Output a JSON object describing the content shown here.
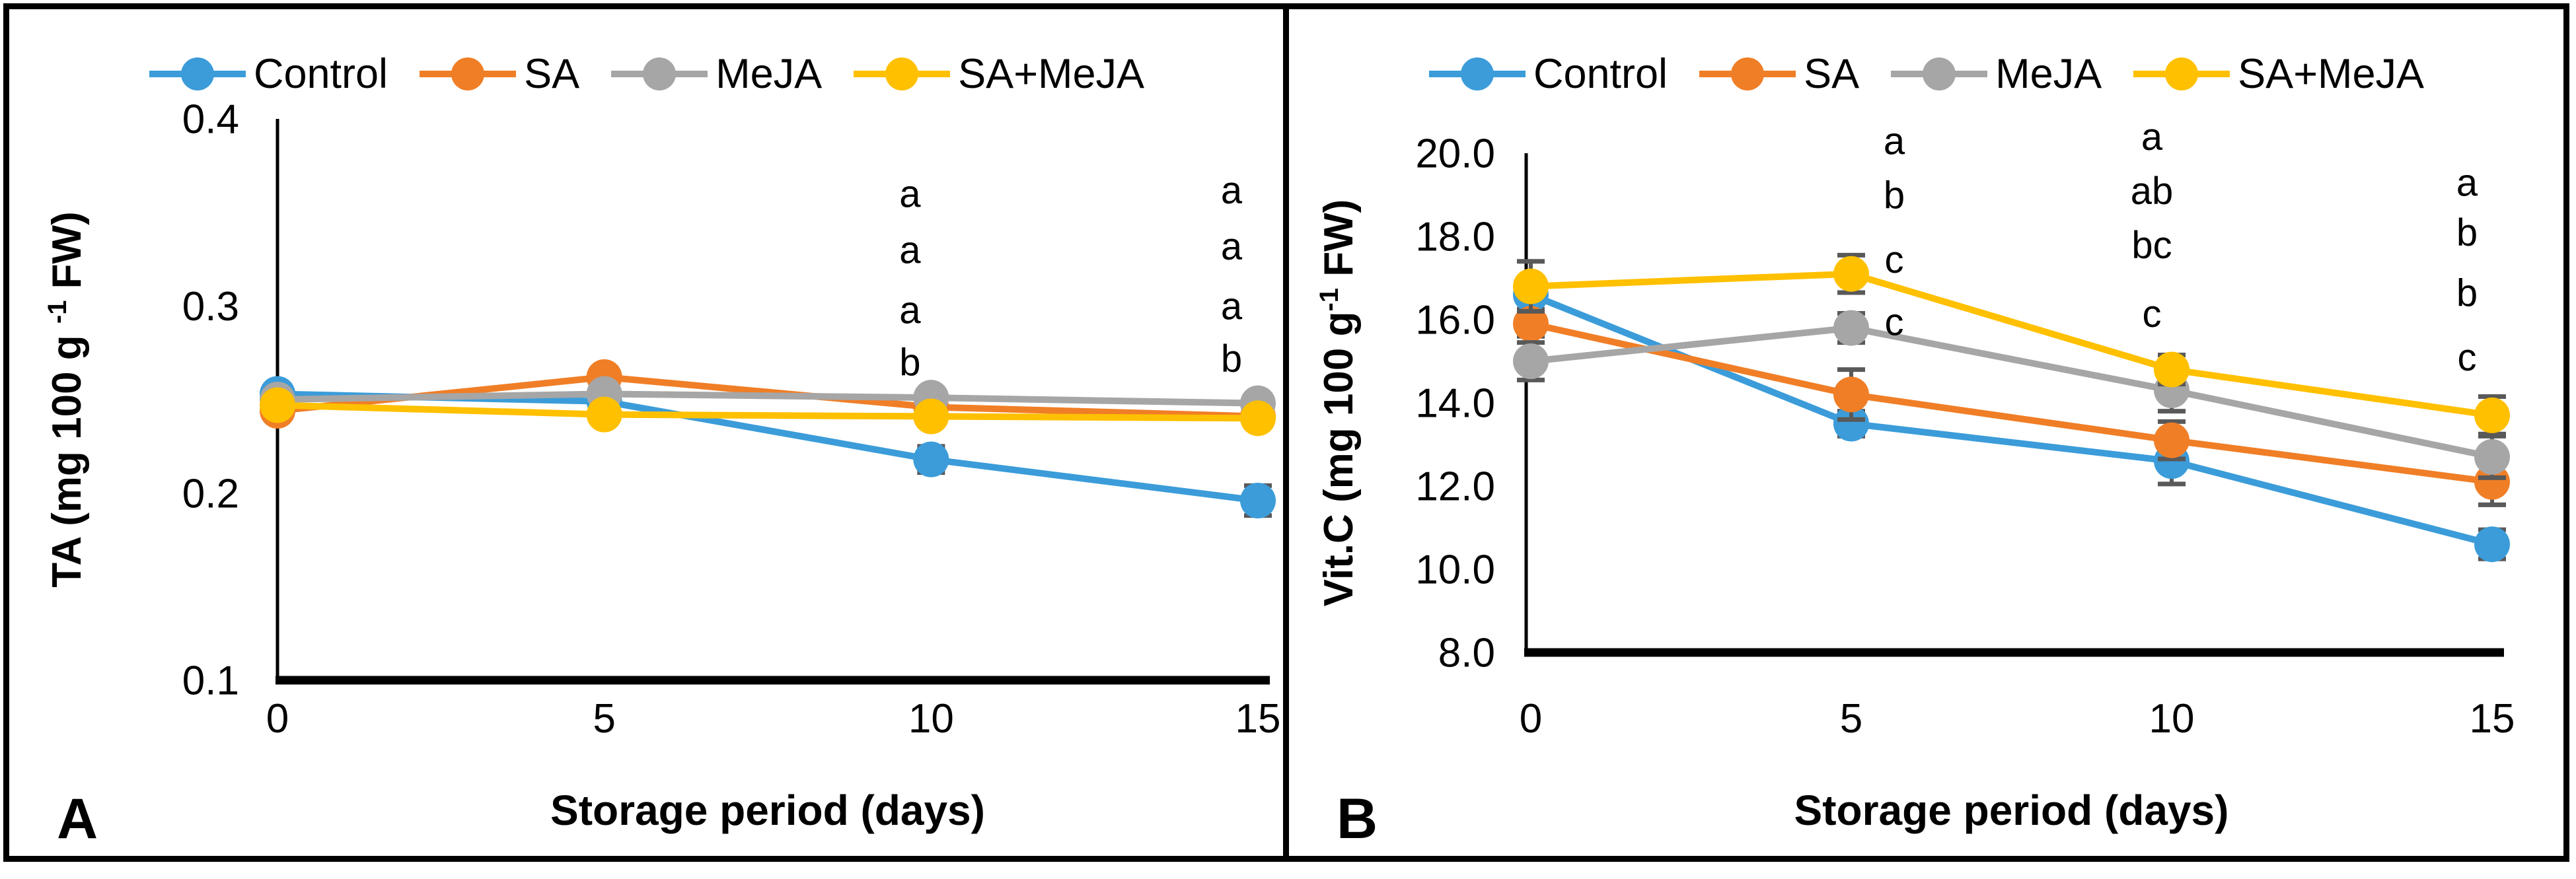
{
  "figure": {
    "border_color": "#000000",
    "background": "#ffffff",
    "panel_labels": [
      "A",
      "B"
    ]
  },
  "chart_data": [
    {
      "type": "line",
      "panel_label": "A",
      "title": "",
      "xlabel": "Storage period (days)",
      "ylabel_prefix": "TA (mg 100 g ",
      "ylabel_sup": "-1",
      "ylabel_suffix": " FW)",
      "x": [
        0,
        5,
        10,
        15
      ],
      "xtick_labels": [
        "0",
        "5",
        "10",
        "15"
      ],
      "ylim": [
        0.1,
        0.4
      ],
      "ytick_values": [
        0.4,
        0.3,
        0.2,
        0.1
      ],
      "ytick_labels": [
        "0.4",
        "0.3",
        "0.2",
        "0.1"
      ],
      "grid": false,
      "legend_position": "top",
      "legend": [
        "Control",
        "SA",
        "MeJA",
        "SA+MeJA"
      ],
      "series": [
        {
          "name": "Control",
          "color": "#3B9CD9",
          "values": [
            0.253,
            0.249,
            0.218,
            0.196
          ],
          "errors": [
            0.005,
            0.003,
            0.007,
            0.008
          ]
        },
        {
          "name": "SA",
          "color": "#F07E26",
          "values": [
            0.244,
            0.262,
            0.246,
            0.241
          ],
          "errors": [
            0.004,
            0.005,
            0.003,
            0.003
          ]
        },
        {
          "name": "MeJA",
          "color": "#A6A6A6",
          "values": [
            0.25,
            0.253,
            0.251,
            0.248
          ],
          "errors": [
            0.003,
            0.003,
            0.003,
            0.003
          ]
        },
        {
          "name": "SA+MeJA",
          "color": "#FFC000",
          "values": [
            0.247,
            0.242,
            0.241,
            0.24
          ],
          "errors": [
            0.003,
            0.003,
            0.003,
            0.003
          ]
        }
      ],
      "sig_letters": [
        {
          "day": 10,
          "dx": -32,
          "letters": [
            "a",
            "a",
            "a",
            "b"
          ],
          "values": [
            0.36,
            0.33,
            0.298,
            0.27
          ]
        },
        {
          "day": 15,
          "dx": -40,
          "letters": [
            "a",
            "a",
            "a",
            "b"
          ],
          "values": [
            0.362,
            0.332,
            0.3,
            0.272
          ]
        }
      ]
    },
    {
      "type": "line",
      "panel_label": "B",
      "title": "",
      "xlabel": "Storage period (days)",
      "ylabel_prefix": "Vit.C (mg 100 g",
      "ylabel_sup": "-1",
      "ylabel_suffix": " FW)",
      "x": [
        0,
        5,
        10,
        15
      ],
      "xtick_labels": [
        "0",
        "5",
        "10",
        "15"
      ],
      "ylim": [
        8.0,
        20.0
      ],
      "ytick_values": [
        20.0,
        18.0,
        16.0,
        14.0,
        12.0,
        10.0,
        8.0
      ],
      "ytick_labels": [
        "20.0",
        "18.0",
        "16.0",
        "14.0",
        "12.0",
        "10.0",
        "8.0"
      ],
      "grid": false,
      "legend_position": "top",
      "legend": [
        "Control",
        "SA",
        "MeJA",
        "SA+MeJA"
      ],
      "series": [
        {
          "name": "Control",
          "color": "#3B9CD9",
          "values": [
            16.6,
            13.5,
            12.6,
            10.6
          ],
          "errors": [
            0.35,
            0.3,
            0.55,
            0.35
          ]
        },
        {
          "name": "SA",
          "color": "#F07E26",
          "values": [
            15.9,
            14.2,
            13.1,
            12.1
          ],
          "errors": [
            0.3,
            0.6,
            0.45,
            0.55
          ]
        },
        {
          "name": "MeJA",
          "color": "#A6A6A6",
          "values": [
            15.0,
            15.8,
            14.3,
            12.7
          ],
          "errors": [
            0.45,
            0.35,
            0.5,
            0.5
          ]
        },
        {
          "name": "SA+MeJA",
          "color": "#FFC000",
          "values": [
            16.8,
            17.1,
            14.8,
            13.7
          ],
          "errors": [
            0.6,
            0.45,
            0.35,
            0.45
          ]
        }
      ],
      "sig_letters": [
        {
          "day": 5,
          "dx": 65,
          "letters": [
            "a",
            "b",
            "c",
            "c"
          ],
          "values": [
            20.3,
            19.0,
            17.45,
            15.95
          ]
        },
        {
          "day": 10,
          "dx": -30,
          "letters": [
            "a",
            "ab",
            "bc",
            "c"
          ],
          "values": [
            20.4,
            19.1,
            17.8,
            16.15
          ]
        },
        {
          "day": 15,
          "dx": -38,
          "letters": [
            "a",
            "b",
            "b",
            "c"
          ],
          "values": [
            19.3,
            18.1,
            16.65,
            15.1
          ]
        }
      ]
    }
  ],
  "style": {
    "error_bar_color": "#595959",
    "axis_color": "#000000",
    "sig_letter_color": "#1a1a1a"
  }
}
